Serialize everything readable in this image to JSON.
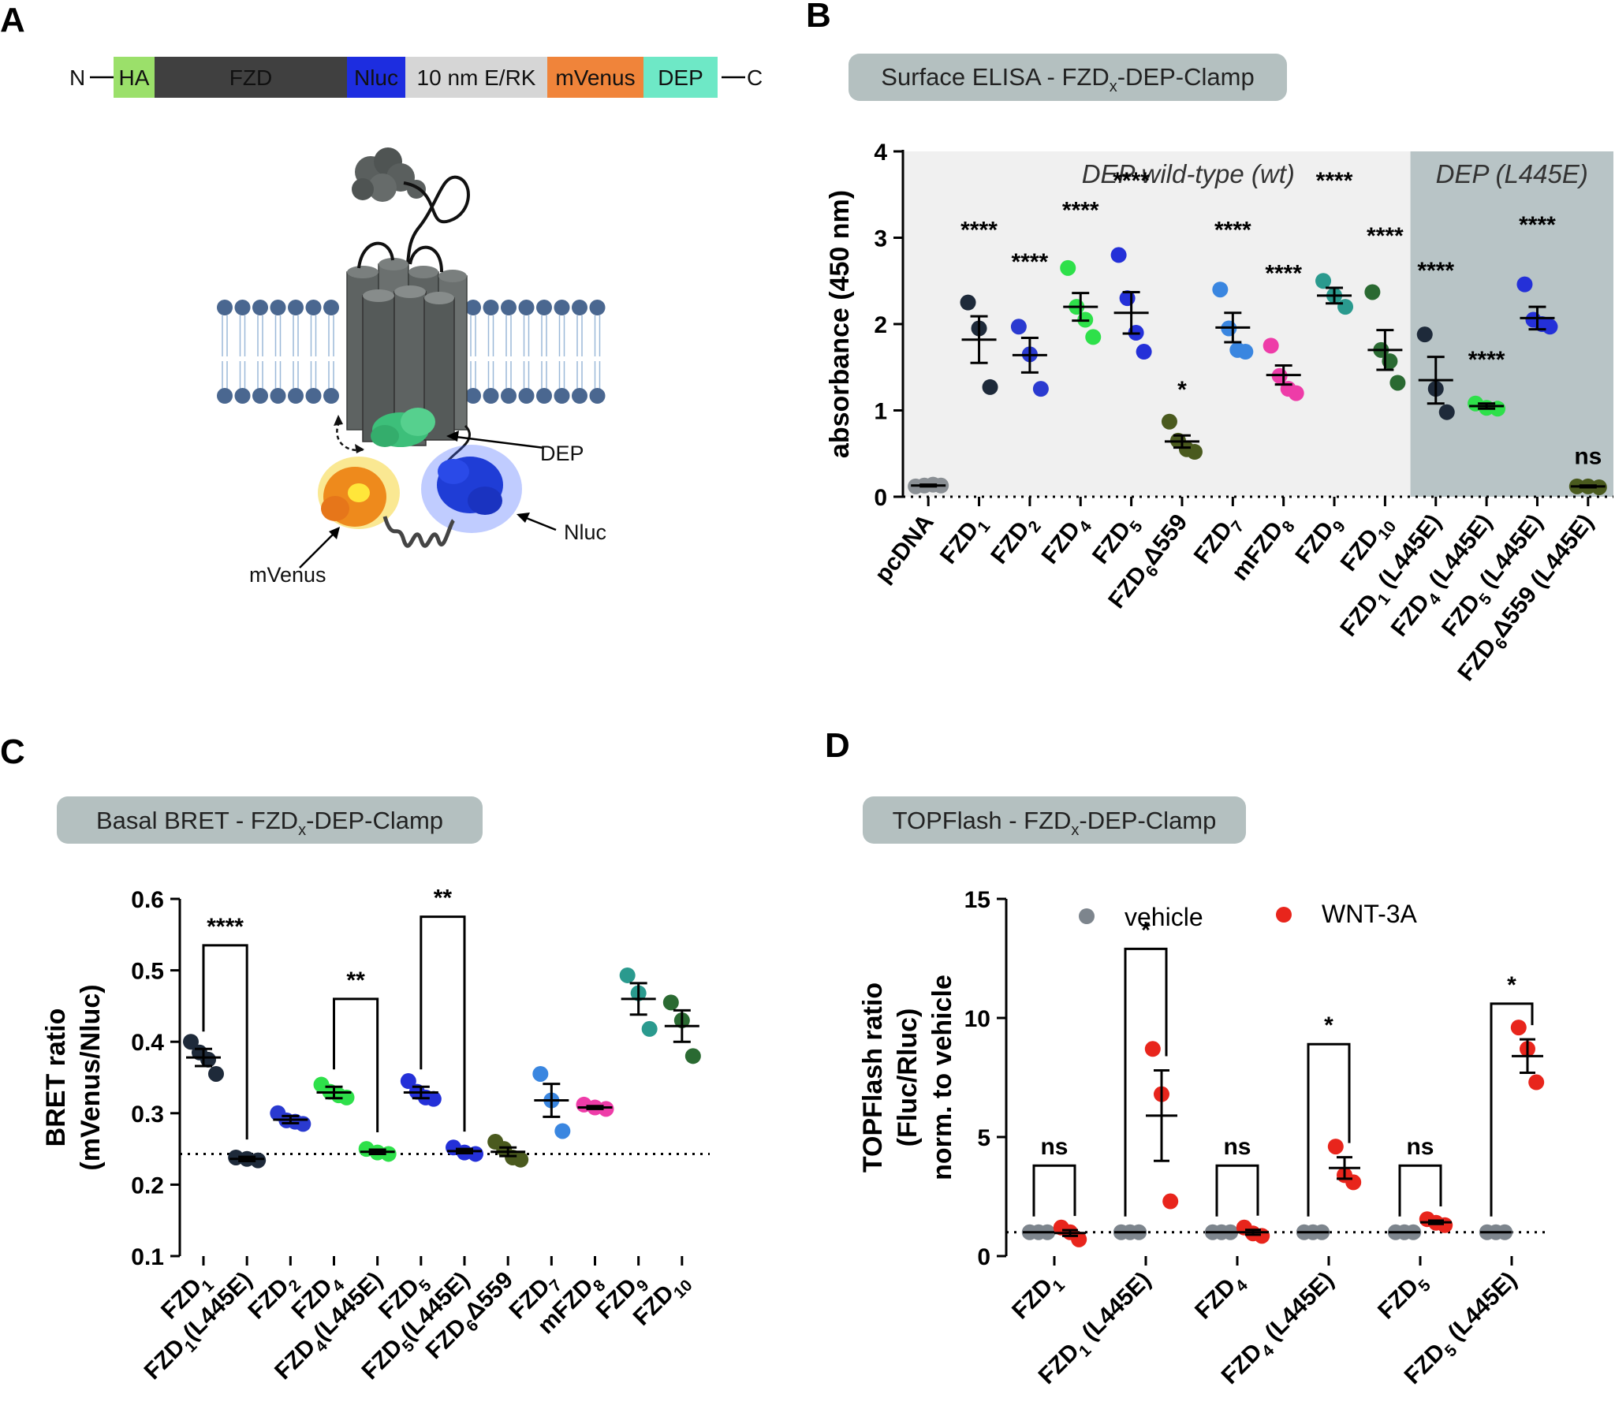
{
  "panelA": {
    "letter": "A",
    "construct": {
      "n_term": "N",
      "c_term": "C",
      "segments": [
        {
          "label": "HA",
          "color": "#9be06a",
          "text_color": "#111111"
        },
        {
          "label": "FZD",
          "color": "#404040",
          "text_color": "#dddddd"
        },
        {
          "label": "Nluc",
          "color": "#1d2de0",
          "text_color": "#ffffff"
        },
        {
          "label": "10 nm E/RK",
          "color": "#d6d6d6",
          "text_color": "#222222"
        },
        {
          "label": "mVenus",
          "color": "#f0843a",
          "text_color": "#111111"
        },
        {
          "label": "DEP",
          "color": "#6ee8c6",
          "text_color": "#111111"
        }
      ]
    },
    "labels": {
      "dep": "DEP",
      "nluc": "Nluc",
      "mvenus": "mVenus"
    },
    "colors": {
      "dep": "#3dbf7a",
      "nluc": "#1f3dd6",
      "mvenus": "#e8c31a",
      "receptor": "#5a5f5e",
      "membrane": "#4a6790"
    }
  },
  "panelB": {
    "letter": "B",
    "title": "Surface ELISA - FZD",
    "title_sub": "x",
    "title_suffix": "-DEP-Clamp",
    "regions": {
      "wt": "DEP wild-type (wt)",
      "mut": "DEP (L445E)"
    },
    "chart_data": {
      "type": "scatter",
      "ylabel": "absorbance (450 nm)",
      "ylim": [
        0,
        4
      ],
      "yticks": [
        0,
        1,
        2,
        3,
        4
      ],
      "baseline": 0,
      "categories": [
        {
          "label": "pcDNA",
          "color": "#8a8f94",
          "points": [
            0.12,
            0.13,
            0.14,
            0.13
          ],
          "mean": 0.13,
          "sem": 0.01,
          "sig": ""
        },
        {
          "label": "FZD1",
          "base": "FZD",
          "sub": "1",
          "color": "#1e2a3a",
          "points": [
            2.25,
            1.95,
            1.27
          ],
          "mean": 1.82,
          "sem": 0.27,
          "sig": "****"
        },
        {
          "label": "FZD2",
          "base": "FZD",
          "sub": "2",
          "color": "#2a3ad0",
          "points": [
            1.97,
            1.65,
            1.25
          ],
          "mean": 1.64,
          "sem": 0.2,
          "sig": "****"
        },
        {
          "label": "FZD4",
          "base": "FZD",
          "sub": "4",
          "color": "#2ee04a",
          "points": [
            2.65,
            2.2,
            2.05,
            1.85
          ],
          "mean": 2.2,
          "sem": 0.16,
          "sig": "****"
        },
        {
          "label": "FZD5",
          "base": "FZD",
          "sub": "5",
          "color": "#2430d8",
          "points": [
            2.8,
            2.3,
            1.9,
            1.68
          ],
          "mean": 2.13,
          "sem": 0.24,
          "sig": "****"
        },
        {
          "label": "FZD6Δ559",
          "base": "FZD",
          "sub": "6",
          "suffix": "Δ559",
          "color": "#4a5a1e",
          "points": [
            0.87,
            0.65,
            0.55,
            0.52
          ],
          "mean": 0.64,
          "sem": 0.07,
          "sig": "*"
        },
        {
          "label": "FZD7",
          "base": "FZD",
          "sub": "7",
          "color": "#3a86e0",
          "points": [
            2.4,
            1.95,
            1.7,
            1.68
          ],
          "mean": 1.96,
          "sem": 0.17,
          "sig": "****"
        },
        {
          "label": "mFZD8",
          "base": "mFZD",
          "sub": "8",
          "color": "#ee3ca8",
          "points": [
            1.75,
            1.4,
            1.25,
            1.2
          ],
          "mean": 1.41,
          "sem": 0.11,
          "sig": "****"
        },
        {
          "label": "FZD9",
          "base": "FZD",
          "sub": "9",
          "color": "#2a9a8e",
          "points": [
            2.5,
            2.33,
            2.2
          ],
          "mean": 2.33,
          "sem": 0.09,
          "sig": "****"
        },
        {
          "label": "FZD10",
          "base": "FZD",
          "sub": "10",
          "color": "#2a6a32",
          "points": [
            2.37,
            1.7,
            1.57,
            1.32
          ],
          "mean": 1.7,
          "sem": 0.23,
          "sig": "****"
        },
        {
          "label": "FZD1 (L445E)",
          "base": "FZD",
          "sub": "1",
          "suffix": " (L445E)",
          "color": "#1e2a3a",
          "points": [
            1.88,
            1.25,
            0.98
          ],
          "mean": 1.35,
          "sem": 0.27,
          "sig": "****"
        },
        {
          "label": "FZD4 (L445E)",
          "base": "FZD",
          "sub": "4",
          "suffix": " (L445E)",
          "color": "#2ee04a",
          "points": [
            1.08,
            1.03,
            1.02
          ],
          "mean": 1.05,
          "sem": 0.03,
          "sig": "****"
        },
        {
          "label": "FZD5 (L445E)",
          "base": "FZD",
          "sub": "5",
          "suffix": " (L445E)",
          "color": "#2430d8",
          "points": [
            2.46,
            2.05,
            2.0,
            1.97
          ],
          "mean": 2.07,
          "sem": 0.13,
          "sig": "****"
        },
        {
          "label": "FZD6Δ559 (L445E)",
          "base": "FZD",
          "sub": "6",
          "suffix": "Δ559 (L445E)",
          "color": "#4a5a1e",
          "points": [
            0.12,
            0.12,
            0.11
          ],
          "mean": 0.12,
          "sem": 0.01,
          "sig": "ns"
        }
      ]
    }
  },
  "panelC": {
    "letter": "C",
    "title": "Basal BRET - FZD",
    "title_sub": "x",
    "title_suffix": "-DEP-Clamp",
    "chart_data": {
      "type": "scatter",
      "ylabel_line1": "BRET ratio",
      "ylabel_line2": "(mVenus/Nluc)",
      "ylim": [
        0.1,
        0.6
      ],
      "yticks": [
        0.1,
        0.2,
        0.3,
        0.4,
        0.5,
        0.6
      ],
      "baseline": 0.243,
      "categories": [
        {
          "label": "FZD1",
          "base": "FZD",
          "sub": "1",
          "color": "#1e2a3a",
          "points": [
            0.4,
            0.385,
            0.375,
            0.355
          ],
          "mean": 0.378,
          "sem": 0.012
        },
        {
          "label": "FZD1(L445E)",
          "base": "FZD",
          "sub": "1",
          "suffix": "(L445E)",
          "color": "#1e2a3a",
          "points": [
            0.238,
            0.236,
            0.234
          ],
          "mean": 0.236,
          "sem": 0.003
        },
        {
          "label": "FZD2",
          "base": "FZD",
          "sub": "2",
          "color": "#2a3ad0",
          "points": [
            0.3,
            0.29,
            0.288,
            0.285
          ],
          "mean": 0.291,
          "sem": 0.005
        },
        {
          "label": "FZD4",
          "base": "FZD",
          "sub": "4",
          "color": "#2ee04a",
          "points": [
            0.34,
            0.33,
            0.325,
            0.322
          ],
          "mean": 0.329,
          "sem": 0.008
        },
        {
          "label": "FZD4(L445E)",
          "base": "FZD",
          "sub": "4",
          "suffix": "(L445E)",
          "color": "#2ee04a",
          "points": [
            0.25,
            0.245,
            0.243
          ],
          "mean": 0.246,
          "sem": 0.003
        },
        {
          "label": "FZD5",
          "base": "FZD",
          "sub": "5",
          "color": "#2430d8",
          "points": [
            0.345,
            0.33,
            0.322,
            0.32
          ],
          "mean": 0.329,
          "sem": 0.008
        },
        {
          "label": "FZD5(L445E)",
          "base": "FZD",
          "sub": "5",
          "suffix": "(L445E)",
          "color": "#2430d8",
          "points": [
            0.252,
            0.245,
            0.243
          ],
          "mean": 0.247,
          "sem": 0.003
        },
        {
          "label": "FZD6Δ559",
          "base": "FZD",
          "sub": "6",
          "suffix": "Δ559",
          "color": "#4a5a1e",
          "points": [
            0.26,
            0.25,
            0.238,
            0.235
          ],
          "mean": 0.246,
          "sem": 0.006
        },
        {
          "label": "FZD7",
          "base": "FZD",
          "sub": "7",
          "color": "#3a86e0",
          "points": [
            0.355,
            0.318,
            0.275
          ],
          "mean": 0.318,
          "sem": 0.023
        },
        {
          "label": "mFZD8",
          "base": "mFZD",
          "sub": "8",
          "color": "#ee3ca8",
          "points": [
            0.312,
            0.308,
            0.306
          ],
          "mean": 0.308,
          "sem": 0.002
        },
        {
          "label": "FZD9",
          "base": "FZD",
          "sub": "9",
          "color": "#2a9a8e",
          "points": [
            0.493,
            0.468,
            0.418
          ],
          "mean": 0.46,
          "sem": 0.022
        },
        {
          "label": "FZD10",
          "base": "FZD",
          "sub": "10",
          "color": "#2a6a32",
          "points": [
            0.455,
            0.43,
            0.38
          ],
          "mean": 0.422,
          "sem": 0.022
        }
      ],
      "brackets": [
        {
          "from": 0,
          "to": 1,
          "top": 0.535,
          "label": "****"
        },
        {
          "from": 3,
          "to": 4,
          "top": 0.46,
          "label": "**"
        },
        {
          "from": 5,
          "to": 6,
          "top": 0.575,
          "label": "**"
        }
      ]
    }
  },
  "panelD": {
    "letter": "D",
    "title": "TOPFlash - FZD",
    "title_sub": "x",
    "title_suffix": "-DEP-Clamp",
    "chart_data": {
      "type": "scatter",
      "ylabel_line1": "TOPFlash ratio",
      "ylabel_line2": "(Fluc/Rluc)",
      "ylabel_line3": "norm. to vehicle",
      "ylim": [
        0,
        15
      ],
      "yticks": [
        0,
        5,
        10,
        15
      ],
      "baseline": 1,
      "series": [
        {
          "name": "vehicle",
          "color": "#7d858d"
        },
        {
          "name": "WNT-3A",
          "color": "#e8251c"
        }
      ],
      "groups": [
        {
          "label": "FZD1",
          "base": "FZD",
          "sub": "1",
          "vehicle": {
            "points": [
              1,
              1,
              1
            ],
            "mean": 1,
            "sem": 0
          },
          "wnt": {
            "points": [
              1.2,
              1.0,
              0.7
            ],
            "mean": 0.97,
            "sem": 0.12
          },
          "sig": "ns"
        },
        {
          "label": "FZD1 (L445E)",
          "base": "FZD",
          "sub": "1",
          "suffix": " (L445E)",
          "vehicle": {
            "points": [
              1,
              1,
              1
            ],
            "mean": 1,
            "sem": 0
          },
          "wnt": {
            "points": [
              8.7,
              6.8,
              2.3
            ],
            "mean": 5.9,
            "sem": 1.9
          },
          "sig": "*"
        },
        {
          "label": "FZD4",
          "base": "FZD",
          "sub": "4",
          "vehicle": {
            "points": [
              1,
              1,
              1
            ],
            "mean": 1,
            "sem": 0
          },
          "wnt": {
            "points": [
              1.2,
              0.95,
              0.85
            ],
            "mean": 1.0,
            "sem": 0.1
          },
          "sig": "ns"
        },
        {
          "label": "FZD4 (L445E)",
          "base": "FZD",
          "sub": "4",
          "suffix": " (L445E)",
          "vehicle": {
            "points": [
              1,
              1,
              1
            ],
            "mean": 1,
            "sem": 0
          },
          "wnt": {
            "points": [
              4.6,
              3.4,
              3.1
            ],
            "mean": 3.7,
            "sem": 0.45
          },
          "sig": "*"
        },
        {
          "label": "FZD5",
          "base": "FZD",
          "sub": "5",
          "vehicle": {
            "points": [
              1,
              1,
              1
            ],
            "mean": 1,
            "sem": 0
          },
          "wnt": {
            "points": [
              1.55,
              1.4,
              1.3
            ],
            "mean": 1.42,
            "sem": 0.07
          },
          "sig": "ns"
        },
        {
          "label": "FZD5 (L445E)",
          "base": "FZD",
          "sub": "5",
          "suffix": " (L445E)",
          "vehicle": {
            "points": [
              1,
              1,
              1
            ],
            "mean": 1,
            "sem": 0
          },
          "wnt": {
            "points": [
              9.6,
              8.7,
              7.3
            ],
            "mean": 8.4,
            "sem": 0.7
          },
          "sig": "*"
        }
      ]
    }
  }
}
